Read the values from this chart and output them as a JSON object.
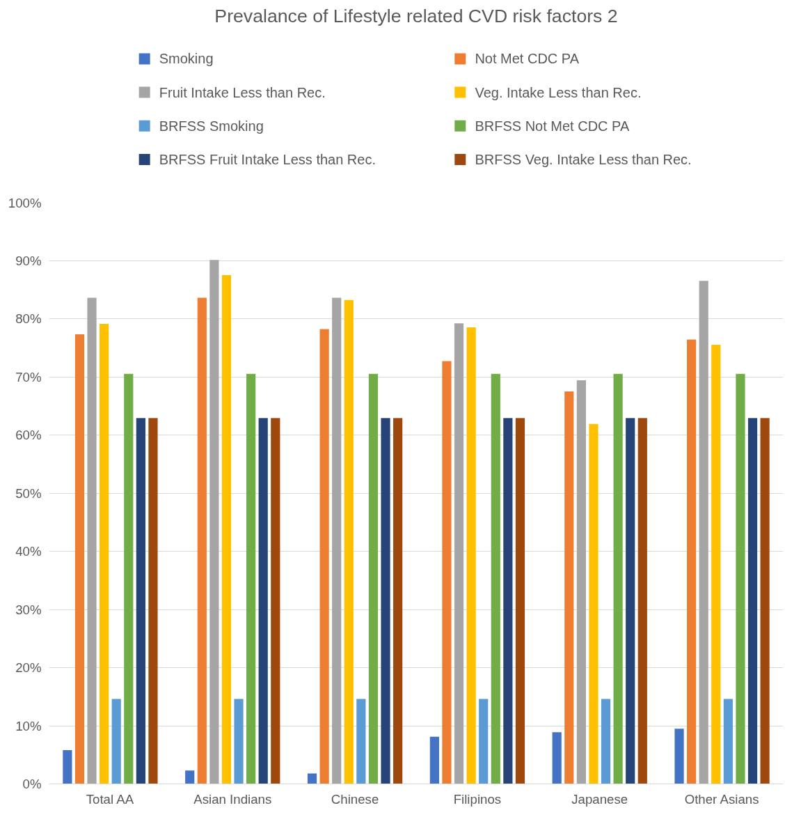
{
  "chart_data": {
    "type": "bar",
    "title": "Prevalance of Lifestyle related CVD risk factors 2",
    "categories": [
      "Total AA",
      "Asian Indians",
      "Chinese",
      "Filipinos",
      "Japanese",
      "Other Asians"
    ],
    "series": [
      {
        "name": "Smoking",
        "color": "#4472c4",
        "values": [
          5.8,
          2.3,
          1.8,
          8.1,
          8.9,
          9.5
        ]
      },
      {
        "name": "Not Met CDC PA",
        "color": "#ed7d31",
        "values": [
          77.3,
          83.6,
          78.2,
          72.7,
          67.5,
          76.4
        ]
      },
      {
        "name": "Fruit Intake Less than Rec.",
        "color": "#a5a5a5",
        "values": [
          83.6,
          90.1,
          83.6,
          79.2,
          69.4,
          86.5
        ]
      },
      {
        "name": "Veg. Intake Less than Rec.",
        "color": "#ffc000",
        "values": [
          79.1,
          87.5,
          83.2,
          78.5,
          61.9,
          75.5
        ]
      },
      {
        "name": "BRFSS Smoking",
        "color": "#5b9bd5",
        "values": [
          14.6,
          14.6,
          14.6,
          14.6,
          14.6,
          14.6
        ]
      },
      {
        "name": "BRFSS Not Met CDC PA",
        "color": "#70ad47",
        "values": [
          70.5,
          70.5,
          70.5,
          70.5,
          70.5,
          70.5
        ]
      },
      {
        "name": "BRFSS Fruit Intake Less than Rec.",
        "color": "#264478",
        "values": [
          62.9,
          62.9,
          62.9,
          62.9,
          62.9,
          62.9
        ]
      },
      {
        "name": "BRFSS Veg. Intake Less than Rec.",
        "color": "#9e480e",
        "values": [
          62.9,
          62.9,
          62.9,
          62.9,
          62.9,
          62.9
        ]
      }
    ],
    "ylim": [
      0,
      100
    ],
    "yticks": [
      {
        "value": 0,
        "label": "0%"
      },
      {
        "value": 10,
        "label": "10%"
      },
      {
        "value": 20,
        "label": "20%"
      },
      {
        "value": 30,
        "label": "30%"
      },
      {
        "value": 40,
        "label": "40%"
      },
      {
        "value": 50,
        "label": "50%"
      },
      {
        "value": 60,
        "label": "60%"
      },
      {
        "value": 70,
        "label": "70%"
      },
      {
        "value": 80,
        "label": "80%"
      },
      {
        "value": 90,
        "label": "90%"
      },
      {
        "value": 100,
        "label": "100%"
      }
    ],
    "grid": "y",
    "legend": "top"
  }
}
